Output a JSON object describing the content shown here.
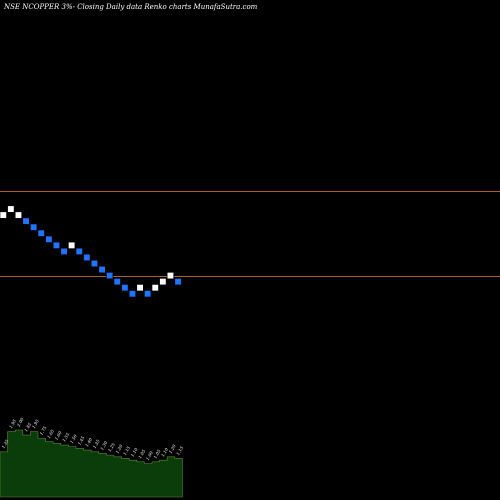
{
  "chart_data": {
    "type": "renko",
    "title": "NSE NCOPPER 3%-  Closing Daily data  Renko  charts MunafaSutra.com",
    "background": "#000000",
    "colors": {
      "up_brick": "#ffffff",
      "down_brick": "#1e74ff",
      "reference_line": "#b0601a",
      "volume_fill": "#0a3d0a",
      "volume_line": "#5a8a2a"
    },
    "reference_levels": [
      {
        "label": "upper",
        "price_index": 0
      },
      {
        "label": "lower",
        "price_index": -14
      }
    ],
    "bricks": [
      {
        "dir": "up",
        "level": -2
      },
      {
        "dir": "up",
        "level": -1
      },
      {
        "dir": "up",
        "level": -2
      },
      {
        "dir": "down",
        "level": -3
      },
      {
        "dir": "down",
        "level": -4
      },
      {
        "dir": "down",
        "level": -5
      },
      {
        "dir": "down",
        "level": -6
      },
      {
        "dir": "down",
        "level": -7
      },
      {
        "dir": "down",
        "level": -8
      },
      {
        "dir": "up",
        "level": -7
      },
      {
        "dir": "down",
        "level": -8
      },
      {
        "dir": "down",
        "level": -9
      },
      {
        "dir": "down",
        "level": -10
      },
      {
        "dir": "down",
        "level": -11
      },
      {
        "dir": "down",
        "level": -12
      },
      {
        "dir": "down",
        "level": -13
      },
      {
        "dir": "down",
        "level": -14
      },
      {
        "dir": "down",
        "level": -15
      },
      {
        "dir": "up",
        "level": -14
      },
      {
        "dir": "down",
        "level": -15
      },
      {
        "dir": "up",
        "level": -14
      },
      {
        "dir": "up",
        "level": -13
      },
      {
        "dir": "up",
        "level": -12
      },
      {
        "dir": "down",
        "level": -13
      }
    ],
    "volume": {
      "labels": [
        "1.35",
        "1.95",
        "2.00",
        "1.85",
        "1.95",
        "1.75",
        "1.65",
        "1.60",
        "1.55",
        "1.50",
        "1.45",
        "1.40",
        "1.35",
        "1.30",
        "1.25",
        "1.20",
        "1.15",
        "1.10",
        "1.05",
        "1.00",
        "1.05",
        "1.10",
        "1.20",
        "1.15"
      ],
      "values": [
        1.35,
        1.95,
        2.0,
        1.85,
        1.95,
        1.75,
        1.65,
        1.6,
        1.55,
        1.5,
        1.45,
        1.4,
        1.35,
        1.3,
        1.25,
        1.2,
        1.15,
        1.1,
        1.05,
        1.0,
        1.05,
        1.1,
        1.2,
        1.15
      ]
    }
  }
}
